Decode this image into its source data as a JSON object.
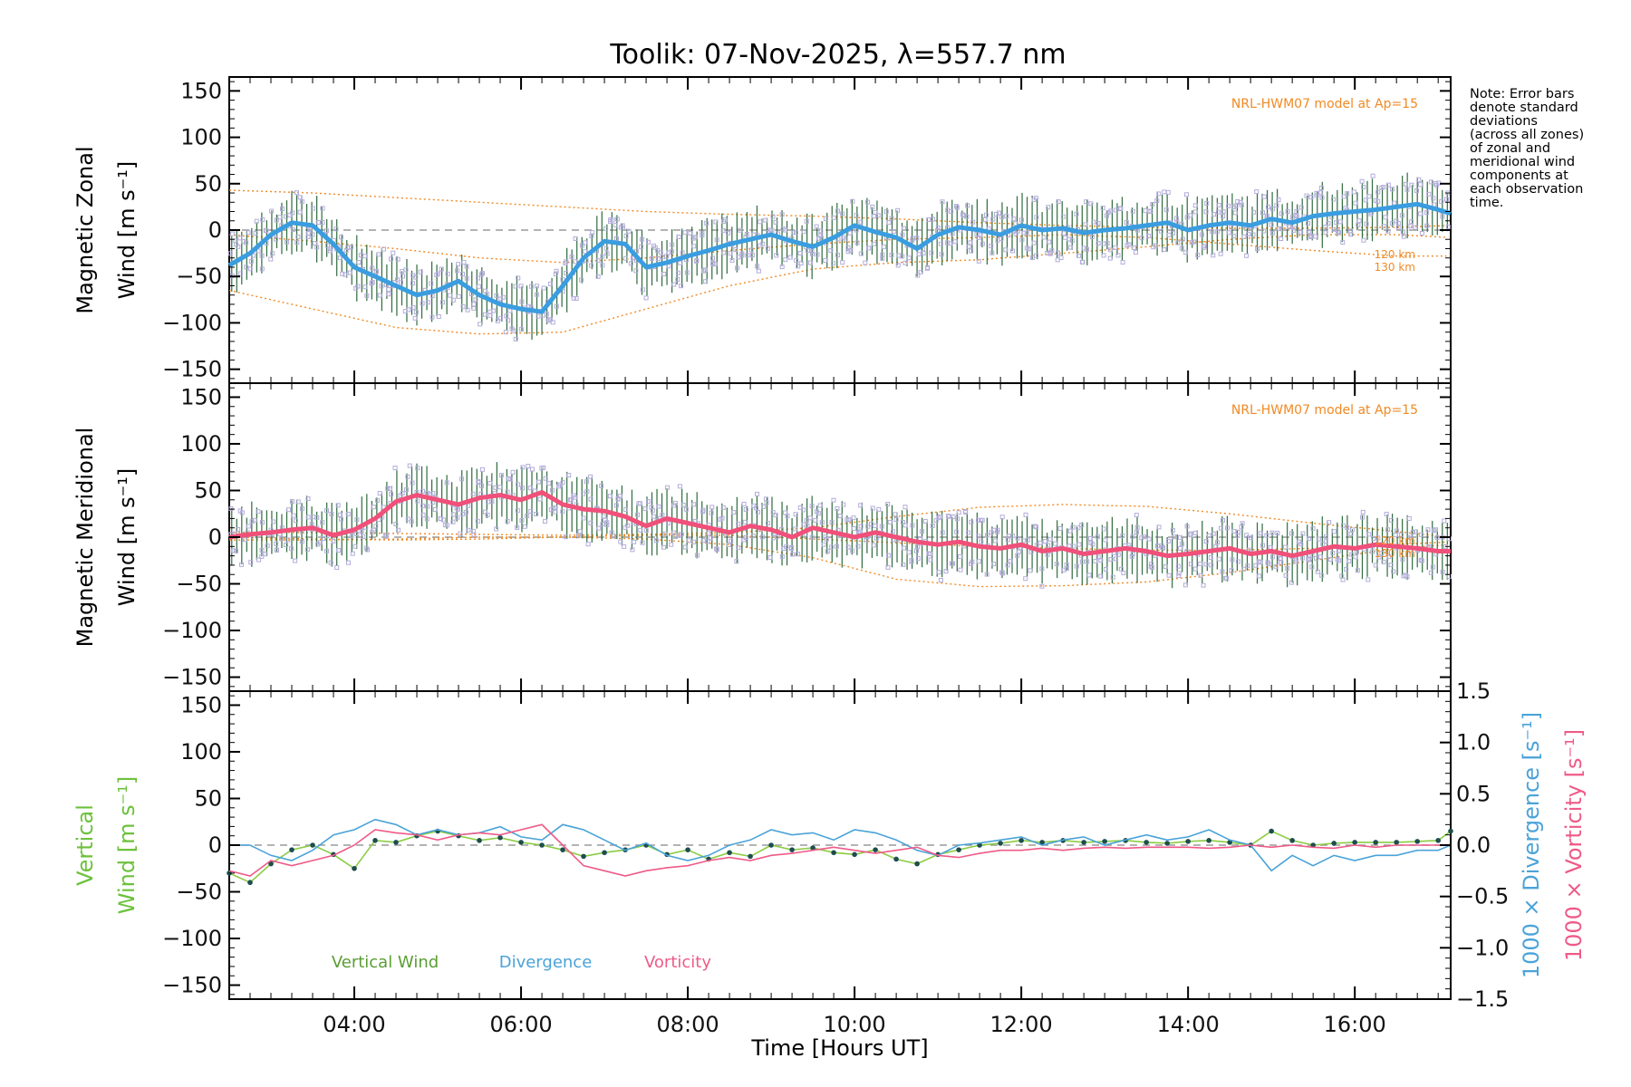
{
  "chart_data": [
    {
      "type": "line",
      "title": "Toolik: 07-Nov-2025, λ=557.7 nm",
      "panel": "zonal",
      "ylabel_line1": "Magnetic Zonal",
      "ylabel_line2": "Wind [m s⁻¹]",
      "xlabel": "Time [Hours UT]",
      "xlim": [
        2.5,
        17.15
      ],
      "ylim": [
        -165,
        165
      ],
      "yticks": [
        150,
        100,
        50,
        0,
        -50,
        -100,
        -150
      ],
      "yticklabels": [
        "150",
        "100",
        "50",
        "0",
        "−50",
        "−100",
        "−150"
      ],
      "xticks": [
        4,
        6,
        8,
        10,
        12,
        14,
        16
      ],
      "xticklabels": [
        "04:00",
        "06:00",
        "08:00",
        "10:00",
        "12:00",
        "14:00",
        "16:00"
      ],
      "model_label": "NRL-HWM07 model at Ap=15",
      "model_alt_labels": [
        "120 km",
        "130 km"
      ],
      "mean_series": {
        "name": "Zonal mean wind",
        "color": "#3a9de0",
        "x": [
          2.5,
          2.75,
          3.0,
          3.25,
          3.5,
          3.75,
          4.0,
          4.25,
          4.5,
          4.75,
          5.0,
          5.25,
          5.5,
          5.75,
          6.0,
          6.25,
          6.5,
          6.75,
          7.0,
          7.25,
          7.5,
          7.75,
          8.0,
          8.25,
          8.5,
          8.75,
          9.0,
          9.25,
          9.5,
          9.75,
          10.0,
          10.25,
          10.5,
          10.75,
          11.0,
          11.25,
          11.5,
          11.75,
          12.0,
          12.25,
          12.5,
          12.75,
          13.0,
          13.25,
          13.5,
          13.75,
          14.0,
          14.25,
          14.5,
          14.75,
          15.0,
          15.25,
          15.5,
          15.75,
          16.0,
          16.25,
          16.5,
          16.75,
          17.0,
          17.15
        ],
        "y": [
          -38,
          -25,
          -5,
          8,
          5,
          -15,
          -40,
          -50,
          -60,
          -70,
          -65,
          -55,
          -70,
          -80,
          -85,
          -88,
          -60,
          -30,
          -12,
          -15,
          -40,
          -35,
          -28,
          -22,
          -15,
          -10,
          -5,
          -12,
          -18,
          -8,
          5,
          -2,
          -8,
          -20,
          -5,
          3,
          0,
          -5,
          5,
          0,
          2,
          -3,
          0,
          2,
          5,
          8,
          0,
          5,
          8,
          5,
          12,
          8,
          15,
          18,
          20,
          22,
          25,
          28,
          22,
          18
        ]
      },
      "scatter_color": "#b3addb",
      "errorbar_color": "#2f6b3d",
      "model_series": [
        {
          "name": "upper envelope",
          "x": [
            2.5,
            3.5,
            4.5,
            5.5,
            6.5,
            7.5,
            8.5,
            9.5,
            10.5,
            11.5,
            12.5,
            13.5,
            14.5,
            15.5,
            16.5,
            17.15
          ],
          "y": [
            43,
            40,
            35,
            30,
            25,
            20,
            17,
            15,
            12,
            8,
            5,
            3,
            2,
            2,
            3,
            5
          ]
        },
        {
          "name": "120 km",
          "x": [
            2.5,
            3.5,
            4.5,
            5.5,
            6.5,
            7.5,
            8.5,
            9.5,
            10.5,
            11.5,
            12.5,
            13.5,
            14.5,
            15.5,
            16.5,
            17.15
          ],
          "y": [
            -5,
            -12,
            -20,
            -30,
            -35,
            -30,
            -22,
            -15,
            -10,
            -8,
            -5,
            -8,
            -15,
            -22,
            -28,
            -28
          ]
        },
        {
          "name": "130 km",
          "x": [
            2.5,
            3.5,
            4.5,
            5.5,
            6.5,
            7.5,
            8.5,
            9.5,
            10.5,
            11.5,
            12.5,
            13.5,
            14.5,
            15.5,
            16.5,
            17.15
          ],
          "y": [
            -65,
            -85,
            -105,
            -112,
            -110,
            -85,
            -60,
            -42,
            -35,
            -32,
            -25,
            -18,
            -10,
            -5,
            -5,
            -8
          ]
        }
      ]
    },
    {
      "type": "line",
      "panel": "meridional",
      "ylabel_line1": "Magnetic Meridional",
      "ylabel_line2": "Wind [m s⁻¹]",
      "xlim": [
        2.5,
        17.15
      ],
      "ylim": [
        -165,
        165
      ],
      "yticks": [
        150,
        100,
        50,
        0,
        -50,
        -100,
        -150
      ],
      "yticklabels": [
        "150",
        "100",
        "50",
        "0",
        "−50",
        "−100",
        "−150"
      ],
      "model_label": "NRL-HWM07 model at Ap=15",
      "model_alt_labels": [
        "120 km",
        "130 km"
      ],
      "mean_series": {
        "name": "Meridional mean wind",
        "color": "#f0507a",
        "x": [
          2.5,
          2.75,
          3.0,
          3.25,
          3.5,
          3.75,
          4.0,
          4.25,
          4.5,
          4.75,
          5.0,
          5.25,
          5.5,
          5.75,
          6.0,
          6.25,
          6.5,
          6.75,
          7.0,
          7.25,
          7.5,
          7.75,
          8.0,
          8.25,
          8.5,
          8.75,
          9.0,
          9.25,
          9.5,
          9.75,
          10.0,
          10.25,
          10.5,
          10.75,
          11.0,
          11.25,
          11.5,
          11.75,
          12.0,
          12.25,
          12.5,
          12.75,
          13.0,
          13.25,
          13.5,
          13.75,
          14.0,
          14.25,
          14.5,
          14.75,
          15.0,
          15.25,
          15.5,
          15.75,
          16.0,
          16.25,
          16.5,
          16.75,
          17.0,
          17.15
        ],
        "y": [
          0,
          3,
          5,
          8,
          10,
          2,
          8,
          20,
          38,
          45,
          40,
          35,
          42,
          45,
          40,
          48,
          35,
          30,
          28,
          22,
          12,
          20,
          15,
          10,
          5,
          12,
          8,
          0,
          10,
          5,
          0,
          5,
          0,
          -5,
          -8,
          -5,
          -10,
          -12,
          -8,
          -15,
          -12,
          -18,
          -15,
          -12,
          -15,
          -20,
          -18,
          -15,
          -12,
          -18,
          -15,
          -20,
          -15,
          -10,
          -12,
          -8,
          -10,
          -12,
          -15,
          -15
        ]
      },
      "scatter_color": "#b3addb",
      "errorbar_color": "#2f6b3d",
      "model_series": [
        {
          "name": "upper envelope",
          "x": [
            2.5,
            3.5,
            4.5,
            5.5,
            6.5,
            7.5,
            8.5,
            9.5,
            10.5,
            11.5,
            12.5,
            13.5,
            14.5,
            15.5,
            16.5,
            17.15
          ],
          "y": [
            5,
            5,
            4,
            3,
            2,
            3,
            5,
            10,
            22,
            32,
            35,
            33,
            25,
            15,
            6,
            0
          ]
        },
        {
          "name": "120 km",
          "x": [
            2.5,
            3.5,
            4.5,
            5.5,
            6.5,
            7.5,
            8.5,
            9.5,
            10.5,
            11.5,
            12.5,
            13.5,
            14.5,
            15.5,
            16.5,
            17.15
          ],
          "y": [
            0,
            -2,
            -3,
            -2,
            0,
            2,
            2,
            -2,
            -6,
            -10,
            -12,
            -14,
            -14,
            -12,
            -8,
            -5
          ]
        },
        {
          "name": "130 km",
          "x": [
            2.5,
            3.5,
            4.5,
            5.5,
            6.5,
            7.5,
            8.5,
            9.5,
            10.5,
            11.5,
            12.5,
            13.5,
            14.5,
            15.5,
            16.5,
            17.15
          ],
          "y": [
            -3,
            -3,
            -2,
            0,
            0,
            -2,
            -8,
            -22,
            -45,
            -53,
            -52,
            -48,
            -38,
            -25,
            -12,
            -8
          ]
        }
      ]
    },
    {
      "type": "line",
      "panel": "vertical",
      "ylabel_line1": "Vertical",
      "ylabel_line2": "Wind [m s⁻¹]",
      "ylabel_color": "#6cc13c",
      "xlim": [
        2.5,
        17.15
      ],
      "ylim": [
        -165,
        165
      ],
      "yticks": [
        150,
        100,
        50,
        0,
        -50,
        -100,
        -150
      ],
      "yticklabels": [
        "150",
        "100",
        "50",
        "0",
        "−50",
        "−100",
        "−150"
      ],
      "right_ylim": [
        -1.5,
        1.5
      ],
      "right_yticks": [
        1.5,
        1.0,
        0.5,
        0.0,
        -0.5,
        -1.0,
        -1.5
      ],
      "right_yticklabels": [
        "1.5",
        "1.0",
        "0.5",
        "0.0",
        "−0.5",
        "−1.0",
        "−1.5"
      ],
      "right_ylabel_divergence": "1000 × Divergence [s⁻¹]",
      "right_ylabel_vorticity": "1000 × Vorticity [s⁻¹]",
      "legend": [
        {
          "label": "Vertical Wind",
          "color": "#5a9e32"
        },
        {
          "label": "Divergence",
          "color": "#4aa3d8"
        },
        {
          "label": "Vorticity",
          "color": "#ef5a88"
        }
      ],
      "series": [
        {
          "name": "Vertical Wind",
          "axis": "left",
          "color": "#8ccc44",
          "marker_color": "#1d4d4f",
          "x": [
            2.5,
            2.75,
            3.0,
            3.25,
            3.5,
            3.75,
            4.0,
            4.25,
            4.5,
            4.75,
            5.0,
            5.25,
            5.5,
            5.75,
            6.0,
            6.25,
            6.5,
            6.75,
            7.0,
            7.25,
            7.5,
            7.75,
            8.0,
            8.25,
            8.5,
            8.75,
            9.0,
            9.25,
            9.5,
            9.75,
            10.0,
            10.25,
            10.5,
            10.75,
            11.0,
            11.25,
            11.5,
            11.75,
            12.0,
            12.25,
            12.5,
            12.75,
            13.0,
            13.25,
            13.5,
            13.75,
            14.0,
            14.25,
            14.5,
            14.75,
            15.0,
            15.25,
            15.5,
            15.75,
            16.0,
            16.25,
            16.5,
            16.75,
            17.0,
            17.15
          ],
          "y": [
            -30,
            -40,
            -20,
            -5,
            0,
            -10,
            -25,
            5,
            3,
            10,
            15,
            10,
            5,
            8,
            3,
            0,
            -5,
            -12,
            -8,
            -5,
            0,
            -10,
            -5,
            -15,
            -8,
            -12,
            0,
            -5,
            -3,
            -8,
            -10,
            -5,
            -15,
            -20,
            -10,
            -5,
            0,
            2,
            5,
            3,
            5,
            3,
            4,
            5,
            3,
            2,
            4,
            5,
            3,
            0,
            15,
            5,
            0,
            2,
            3,
            3,
            3,
            4,
            5,
            15
          ]
        },
        {
          "name": "Divergence",
          "axis": "right",
          "color": "#4aa3d8",
          "x": [
            2.5,
            2.75,
            3.0,
            3.25,
            3.5,
            3.75,
            4.0,
            4.25,
            4.5,
            4.75,
            5.0,
            5.25,
            5.5,
            5.75,
            6.0,
            6.25,
            6.5,
            6.75,
            7.0,
            7.25,
            7.5,
            7.75,
            8.0,
            8.25,
            8.5,
            8.75,
            9.0,
            9.25,
            9.5,
            9.75,
            10.0,
            10.25,
            10.5,
            10.75,
            11.0,
            11.25,
            11.5,
            11.75,
            12.0,
            12.25,
            12.5,
            12.75,
            13.0,
            13.25,
            13.5,
            13.75,
            14.0,
            14.25,
            14.5,
            14.75,
            15.0,
            15.25,
            15.5,
            15.75,
            16.0,
            16.25,
            16.5,
            16.75,
            17.0,
            17.15
          ],
          "y": [
            0.0,
            0.0,
            -0.1,
            -0.15,
            -0.05,
            0.1,
            0.15,
            0.25,
            0.2,
            0.1,
            0.15,
            0.1,
            0.12,
            0.18,
            0.08,
            0.05,
            0.2,
            0.15,
            0.05,
            -0.05,
            0.02,
            -0.1,
            -0.15,
            -0.1,
            0.0,
            0.05,
            0.15,
            0.1,
            0.12,
            0.05,
            0.15,
            0.12,
            0.05,
            -0.05,
            -0.1,
            0.0,
            0.02,
            0.05,
            0.08,
            0.0,
            0.05,
            0.08,
            0.0,
            0.05,
            0.1,
            0.05,
            0.08,
            0.15,
            0.05,
            0.0,
            -0.25,
            -0.1,
            -0.2,
            -0.1,
            -0.15,
            -0.1,
            -0.1,
            -0.05,
            -0.05,
            0.0
          ]
        },
        {
          "name": "Vorticity",
          "axis": "right",
          "color": "#ef5a88",
          "x": [
            2.5,
            2.75,
            3.0,
            3.25,
            3.5,
            3.75,
            4.0,
            4.25,
            4.5,
            4.75,
            5.0,
            5.25,
            5.5,
            5.75,
            6.0,
            6.25,
            6.5,
            6.75,
            7.0,
            7.25,
            7.5,
            7.75,
            8.0,
            8.25,
            8.5,
            8.75,
            9.0,
            9.25,
            9.5,
            9.75,
            10.0,
            10.25,
            10.5,
            10.75,
            11.0,
            11.25,
            11.5,
            11.75,
            12.0,
            12.25,
            12.5,
            12.75,
            13.0,
            13.25,
            13.5,
            13.75,
            14.0,
            14.25,
            14.5,
            14.75,
            15.0,
            15.25,
            15.5,
            15.75,
            16.0,
            16.25,
            16.5,
            16.75,
            17.0,
            17.15
          ],
          "y": [
            -0.25,
            -0.3,
            -0.15,
            -0.2,
            -0.15,
            -0.1,
            0.0,
            0.15,
            0.12,
            0.1,
            0.05,
            0.1,
            0.12,
            0.1,
            0.15,
            0.2,
            0.0,
            -0.2,
            -0.25,
            -0.3,
            -0.25,
            -0.22,
            -0.2,
            -0.15,
            -0.12,
            -0.15,
            -0.1,
            -0.08,
            -0.05,
            -0.02,
            -0.05,
            -0.08,
            -0.05,
            -0.02,
            -0.1,
            -0.12,
            -0.08,
            -0.05,
            -0.05,
            -0.03,
            -0.05,
            -0.03,
            -0.02,
            -0.03,
            -0.02,
            -0.02,
            -0.02,
            -0.03,
            -0.02,
            0.0,
            -0.02,
            0.0,
            -0.02,
            -0.03,
            0.0,
            -0.02,
            0.0,
            0.0,
            0.0,
            0.0
          ]
        }
      ]
    }
  ],
  "note_lines": [
    "Note: Error bars",
    "denote standard",
    "deviations",
    "(across all zones)",
    "of zonal and",
    "meridional wind",
    "components at",
    "each observation",
    "time."
  ],
  "colors": {
    "model": "#f08a24",
    "zero_line": "#9a9a9a",
    "frame": "#000000"
  }
}
